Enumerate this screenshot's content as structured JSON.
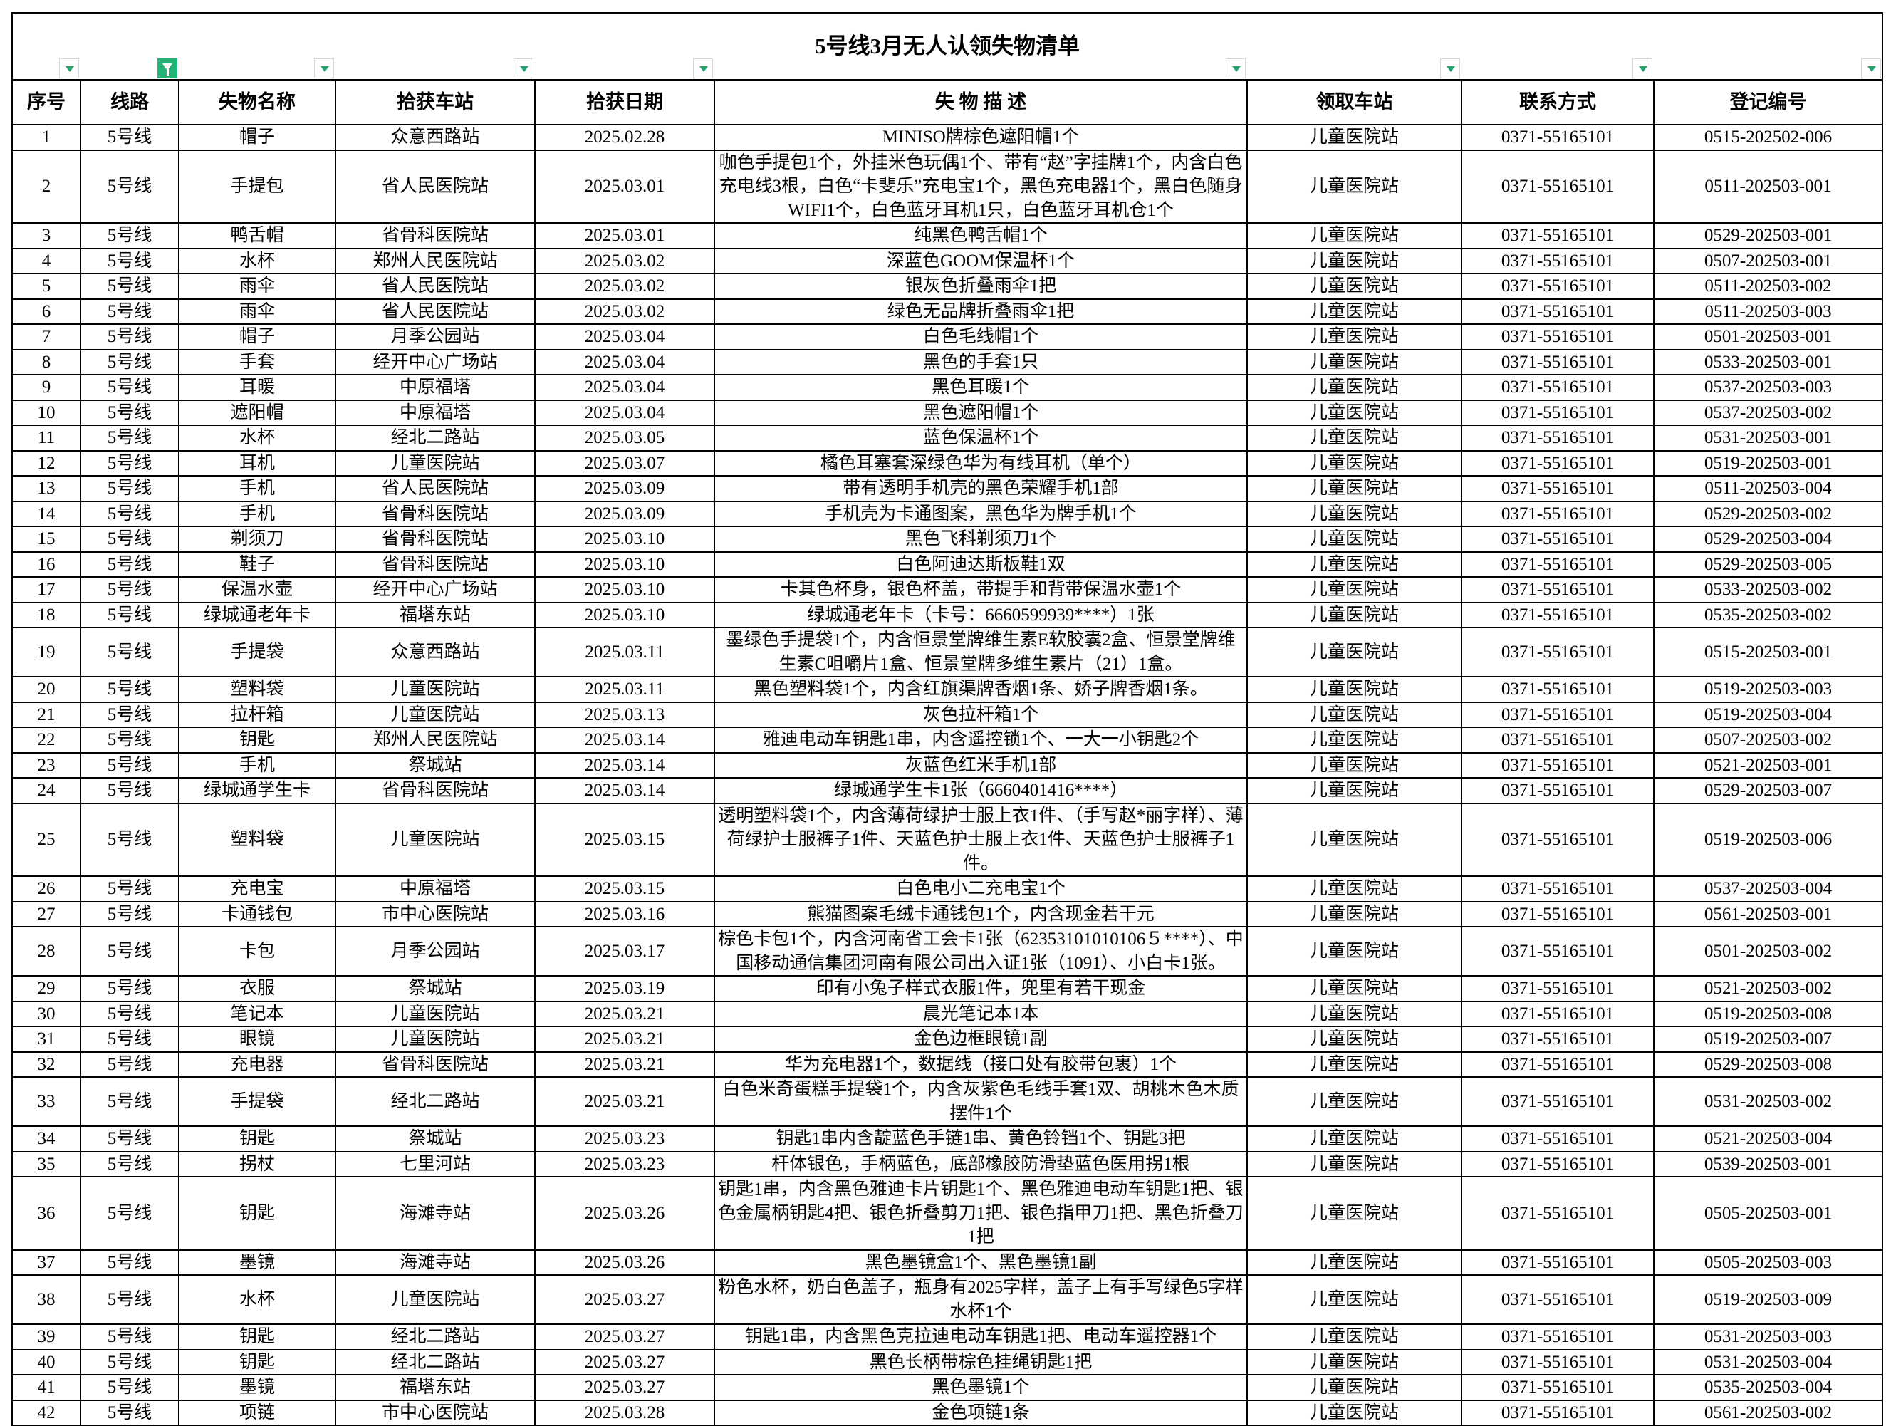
{
  "title": "5号线3月无人认领失物清单",
  "accent_color": "#21b575",
  "filter": {
    "icon": "filter-dropdown-icon",
    "active_column": 1,
    "active_icon": "filter-active-icon"
  },
  "columns": [
    "序号",
    "线路",
    "失物名称",
    "拾获车站",
    "拾获日期",
    "失 物 描 述",
    "领取车站",
    "联系方式",
    "登记编号"
  ],
  "rows": [
    [
      "1",
      "5号线",
      "帽子",
      "众意西路站",
      "2025.02.28",
      "MINISO牌棕色遮阳帽1个",
      "儿童医院站",
      "0371-55165101",
      "0515-202502-006"
    ],
    [
      "2",
      "5号线",
      "手提包",
      "省人民医院站",
      "2025.03.01",
      "咖色手提包1个，外挂米色玩偶1个、带有“赵”字挂牌1个，内含白色充电线3根，白色“卡斐乐”充电宝1个，黑色充电器1个，黑白色随身WIFI1个，白色蓝牙耳机1只，白色蓝牙耳机仓1个",
      "儿童医院站",
      "0371-55165101",
      "0511-202503-001"
    ],
    [
      "3",
      "5号线",
      "鸭舌帽",
      "省骨科医院站",
      "2025.03.01",
      "纯黑色鸭舌帽1个",
      "儿童医院站",
      "0371-55165101",
      "0529-202503-001"
    ],
    [
      "4",
      "5号线",
      "水杯",
      "郑州人民医院站",
      "2025.03.02",
      "深蓝色GOOM保温杯1个",
      "儿童医院站",
      "0371-55165101",
      "0507-202503-001"
    ],
    [
      "5",
      "5号线",
      "雨伞",
      "省人民医院站",
      "2025.03.02",
      "银灰色折叠雨伞1把",
      "儿童医院站",
      "0371-55165101",
      "0511-202503-002"
    ],
    [
      "6",
      "5号线",
      "雨伞",
      "省人民医院站",
      "2025.03.02",
      "绿色无品牌折叠雨伞1把",
      "儿童医院站",
      "0371-55165101",
      "0511-202503-003"
    ],
    [
      "7",
      "5号线",
      "帽子",
      "月季公园站",
      "2025.03.04",
      "白色毛线帽1个",
      "儿童医院站",
      "0371-55165101",
      "0501-202503-001"
    ],
    [
      "8",
      "5号线",
      "手套",
      "经开中心广场站",
      "2025.03.04",
      "黑色的手套1只",
      "儿童医院站",
      "0371-55165101",
      "0533-202503-001"
    ],
    [
      "9",
      "5号线",
      "耳暖",
      "中原福塔",
      "2025.03.04",
      "黑色耳暖1个",
      "儿童医院站",
      "0371-55165101",
      "0537-202503-003"
    ],
    [
      "10",
      "5号线",
      "遮阳帽",
      "中原福塔",
      "2025.03.04",
      "黑色遮阳帽1个",
      "儿童医院站",
      "0371-55165101",
      "0537-202503-002"
    ],
    [
      "11",
      "5号线",
      "水杯",
      "经北二路站",
      "2025.03.05",
      "蓝色保温杯1个",
      "儿童医院站",
      "0371-55165101",
      "0531-202503-001"
    ],
    [
      "12",
      "5号线",
      "耳机",
      "儿童医院站",
      "2025.03.07",
      "橘色耳塞套深绿色华为有线耳机（单个）",
      "儿童医院站",
      "0371-55165101",
      "0519-202503-001"
    ],
    [
      "13",
      "5号线",
      "手机",
      "省人民医院站",
      "2025.03.09",
      "带有透明手机壳的黑色荣耀手机1部",
      "儿童医院站",
      "0371-55165101",
      "0511-202503-004"
    ],
    [
      "14",
      "5号线",
      "手机",
      "省骨科医院站",
      "2025.03.09",
      "手机壳为卡通图案，黑色华为牌手机1个",
      "儿童医院站",
      "0371-55165101",
      "0529-202503-002"
    ],
    [
      "15",
      "5号线",
      "剃须刀",
      "省骨科医院站",
      "2025.03.10",
      "黑色飞科剃须刀1个",
      "儿童医院站",
      "0371-55165101",
      "0529-202503-004"
    ],
    [
      "16",
      "5号线",
      "鞋子",
      "省骨科医院站",
      "2025.03.10",
      "白色阿迪达斯板鞋1双",
      "儿童医院站",
      "0371-55165101",
      "0529-202503-005"
    ],
    [
      "17",
      "5号线",
      "保温水壶",
      "经开中心广场站",
      "2025.03.10",
      "卡其色杯身，银色杯盖，带提手和背带保温水壶1个",
      "儿童医院站",
      "0371-55165101",
      "0533-202503-002"
    ],
    [
      "18",
      "5号线",
      "绿城通老年卡",
      "福塔东站",
      "2025.03.10",
      "绿城通老年卡（卡号：6660599939****）1张",
      "儿童医院站",
      "0371-55165101",
      "0535-202503-002"
    ],
    [
      "19",
      "5号线",
      "手提袋",
      "众意西路站",
      "2025.03.11",
      "墨绿色手提袋1个，内含恒景堂牌维生素E软胶囊2盒、恒景堂牌维生素C咀嚼片1盒、恒景堂牌多维生素片（21）1盒。",
      "儿童医院站",
      "0371-55165101",
      "0515-202503-001"
    ],
    [
      "20",
      "5号线",
      "塑料袋",
      "儿童医院站",
      "2025.03.11",
      "黑色塑料袋1个，内含红旗渠牌香烟1条、娇子牌香烟1条。",
      "儿童医院站",
      "0371-55165101",
      "0519-202503-003"
    ],
    [
      "21",
      "5号线",
      "拉杆箱",
      "儿童医院站",
      "2025.03.13",
      "灰色拉杆箱1个",
      "儿童医院站",
      "0371-55165101",
      "0519-202503-004"
    ],
    [
      "22",
      "5号线",
      "钥匙",
      "郑州人民医院站",
      "2025.03.14",
      "雅迪电动车钥匙1串，内含遥控锁1个、一大一小钥匙2个",
      "儿童医院站",
      "0371-55165101",
      "0507-202503-002"
    ],
    [
      "23",
      "5号线",
      "手机",
      "祭城站",
      "2025.03.14",
      "灰蓝色红米手机1部",
      "儿童医院站",
      "0371-55165101",
      "0521-202503-001"
    ],
    [
      "24",
      "5号线",
      "绿城通学生卡",
      "省骨科医院站",
      "2025.03.14",
      "绿城通学生卡1张（6660401416****）",
      "儿童医院站",
      "0371-55165101",
      "0529-202503-007"
    ],
    [
      "25",
      "5号线",
      "塑料袋",
      "儿童医院站",
      "2025.03.15",
      "透明塑料袋1个，内含薄荷绿护士服上衣1件、（手写赵*丽字样）、薄荷绿护士服裤子1件、天蓝色护士服上衣1件、天蓝色护士服裤子1件。",
      "儿童医院站",
      "0371-55165101",
      "0519-202503-006"
    ],
    [
      "26",
      "5号线",
      "充电宝",
      "中原福塔",
      "2025.03.15",
      "白色电小二充电宝1个",
      "儿童医院站",
      "0371-55165101",
      "0537-202503-004"
    ],
    [
      "27",
      "5号线",
      "卡通钱包",
      "市中心医院站",
      "2025.03.16",
      "熊猫图案毛绒卡通钱包1个，内含现金若干元",
      "儿童医院站",
      "0371-55165101",
      "0561-202503-001"
    ],
    [
      "28",
      "5号线",
      "卡包",
      "月季公园站",
      "2025.03.17",
      "棕色卡包1个，内含河南省工会卡1张（62353101010106５****）、中国移动通信集团河南有限公司出入证1张（1091）、小白卡1张。",
      "儿童医院站",
      "0371-55165101",
      "0501-202503-002"
    ],
    [
      "29",
      "5号线",
      "衣服",
      "祭城站",
      "2025.03.19",
      "印有小兔子样式衣服1件，兜里有若干现金",
      "儿童医院站",
      "0371-55165101",
      "0521-202503-002"
    ],
    [
      "30",
      "5号线",
      "笔记本",
      "儿童医院站",
      "2025.03.21",
      "晨光笔记本1本",
      "儿童医院站",
      "0371-55165101",
      "0519-202503-008"
    ],
    [
      "31",
      "5号线",
      "眼镜",
      "儿童医院站",
      "2025.03.21",
      "金色边框眼镜1副",
      "儿童医院站",
      "0371-55165101",
      "0519-202503-007"
    ],
    [
      "32",
      "5号线",
      "充电器",
      "省骨科医院站",
      "2025.03.21",
      "华为充电器1个，数据线（接口处有胶带包裹）1个",
      "儿童医院站",
      "0371-55165101",
      "0529-202503-008"
    ],
    [
      "33",
      "5号线",
      "手提袋",
      "经北二路站",
      "2025.03.21",
      "白色米奇蛋糕手提袋1个，内含灰紫色毛线手套1双、胡桃木色木质摆件1个",
      "儿童医院站",
      "0371-55165101",
      "0531-202503-002"
    ],
    [
      "34",
      "5号线",
      "钥匙",
      "祭城站",
      "2025.03.23",
      "钥匙1串内含靛蓝色手链1串、黄色铃铛1个、钥匙3把",
      "儿童医院站",
      "0371-55165101",
      "0521-202503-004"
    ],
    [
      "35",
      "5号线",
      "拐杖",
      "七里河站",
      "2025.03.23",
      "杆体银色，手柄蓝色，底部橡胶防滑垫蓝色医用拐1根",
      "儿童医院站",
      "0371-55165101",
      "0539-202503-001"
    ],
    [
      "36",
      "5号线",
      "钥匙",
      "海滩寺站",
      "2025.03.26",
      "钥匙1串，内含黑色雅迪卡片钥匙1个、黑色雅迪电动车钥匙1把、银色金属柄钥匙4把、银色折叠剪刀1把、银色指甲刀1把、黑色折叠刀1把",
      "儿童医院站",
      "0371-55165101",
      "0505-202503-001"
    ],
    [
      "37",
      "5号线",
      "墨镜",
      "海滩寺站",
      "2025.03.26",
      "黑色墨镜盒1个、黑色墨镜1副",
      "儿童医院站",
      "0371-55165101",
      "0505-202503-003"
    ],
    [
      "38",
      "5号线",
      "水杯",
      "儿童医院站",
      "2025.03.27",
      "粉色水杯，奶白色盖子，瓶身有2025字样，盖子上有手写绿色5字样水杯1个",
      "儿童医院站",
      "0371-55165101",
      "0519-202503-009"
    ],
    [
      "39",
      "5号线",
      "钥匙",
      "经北二路站",
      "2025.03.27",
      "钥匙1串，内含黑色克拉迪电动车钥匙1把、电动车遥控器1个",
      "儿童医院站",
      "0371-55165101",
      "0531-202503-003"
    ],
    [
      "40",
      "5号线",
      "钥匙",
      "经北二路站",
      "2025.03.27",
      "黑色长柄带棕色挂绳钥匙1把",
      "儿童医院站",
      "0371-55165101",
      "0531-202503-004"
    ],
    [
      "41",
      "5号线",
      "墨镜",
      "福塔东站",
      "2025.03.27",
      "黑色墨镜1个",
      "儿童医院站",
      "0371-55165101",
      "0535-202503-004"
    ],
    [
      "42",
      "5号线",
      "项链",
      "市中心医院站",
      "2025.03.28",
      "金色项链1条",
      "儿童医院站",
      "0371-55165101",
      "0561-202503-002"
    ]
  ]
}
